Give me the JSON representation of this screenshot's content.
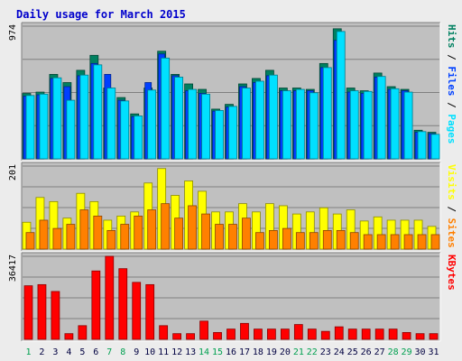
{
  "title": "Daily usage for March 2015",
  "colors": {
    "background": "#ececec",
    "panel": "#c0c0c0",
    "title_text": "#0000cc",
    "hits": "#008060",
    "files": "#0040ff",
    "pages": "#00e0ff",
    "visits": "#ffff00",
    "sites": "#ff8000",
    "kbytes": "#ff0000",
    "weekend_label": "#00a050",
    "weekday_label": "#006060"
  },
  "chart_data": [
    {
      "type": "bar",
      "panel": "hits-files-pages",
      "ylabel_parts": [
        "Pages",
        "Files",
        "Hits"
      ],
      "y_max_label": "974",
      "ylim": [
        0,
        974
      ],
      "categories": [
        "1",
        "2",
        "3",
        "4",
        "5",
        "6",
        "7",
        "8",
        "9",
        "10",
        "11",
        "12",
        "13",
        "14",
        "15",
        "16",
        "17",
        "18",
        "19",
        "20",
        "21",
        "22",
        "23",
        "24",
        "25",
        "26",
        "27",
        "28",
        "29",
        "30",
        "31"
      ],
      "weekend_days": [
        1,
        7,
        8,
        14,
        15,
        21,
        22,
        28,
        29
      ],
      "series": [
        {
          "name": "Hits",
          "values": [
            480,
            490,
            620,
            560,
            650,
            760,
            520,
            450,
            330,
            520,
            790,
            620,
            550,
            510,
            365,
            400,
            550,
            590,
            650,
            520,
            520,
            510,
            700,
            955,
            520,
            500,
            630,
            530,
            510,
            210,
            195
          ]
        },
        {
          "name": "Files",
          "values": [
            460,
            470,
            590,
            530,
            610,
            700,
            620,
            430,
            310,
            560,
            770,
            610,
            500,
            480,
            350,
            380,
            530,
            560,
            610,
            500,
            500,
            500,
            670,
            870,
            490,
            480,
            600,
            510,
            500,
            195,
            185
          ]
        },
        {
          "name": "Pages",
          "values": [
            465,
            475,
            595,
            430,
            615,
            690,
            520,
            425,
            315,
            505,
            740,
            600,
            510,
            475,
            355,
            385,
            520,
            570,
            615,
            500,
            510,
            485,
            670,
            935,
            500,
            495,
            605,
            515,
            490,
            200,
            180
          ]
        }
      ]
    },
    {
      "type": "bar",
      "panel": "visits-sites",
      "ylabel_parts": [
        "Sites",
        "Visits"
      ],
      "y_max_label": "201",
      "ylim": [
        0,
        201
      ],
      "series": [
        {
          "name": "Visits",
          "values": [
            65,
            125,
            115,
            75,
            135,
            115,
            70,
            80,
            90,
            160,
            195,
            130,
            165,
            140,
            90,
            90,
            110,
            90,
            110,
            105,
            85,
            90,
            100,
            85,
            95,
            68,
            78,
            70,
            70,
            70,
            55
          ]
        },
        {
          "name": "Sites",
          "values": [
            40,
            70,
            50,
            60,
            95,
            80,
            45,
            60,
            80,
            95,
            110,
            75,
            105,
            85,
            60,
            60,
            75,
            40,
            45,
            50,
            40,
            40,
            45,
            45,
            40,
            35,
            35,
            35,
            35,
            35,
            35
          ]
        }
      ]
    },
    {
      "type": "bar",
      "panel": "kbytes",
      "ylabel_parts": [
        "KBytes"
      ],
      "y_max_label": "36417",
      "ylim": [
        0,
        36417
      ],
      "series": [
        {
          "name": "KBytes",
          "values": [
            23500,
            24000,
            21000,
            2500,
            6000,
            30000,
            36417,
            31000,
            25000,
            24000,
            6000,
            2500,
            2500,
            8000,
            3000,
            4500,
            7000,
            4500,
            4500,
            4500,
            6500,
            4500,
            3500,
            5500,
            4500,
            4500,
            4500,
            4500,
            3000,
            2500,
            2500
          ]
        }
      ]
    }
  ]
}
